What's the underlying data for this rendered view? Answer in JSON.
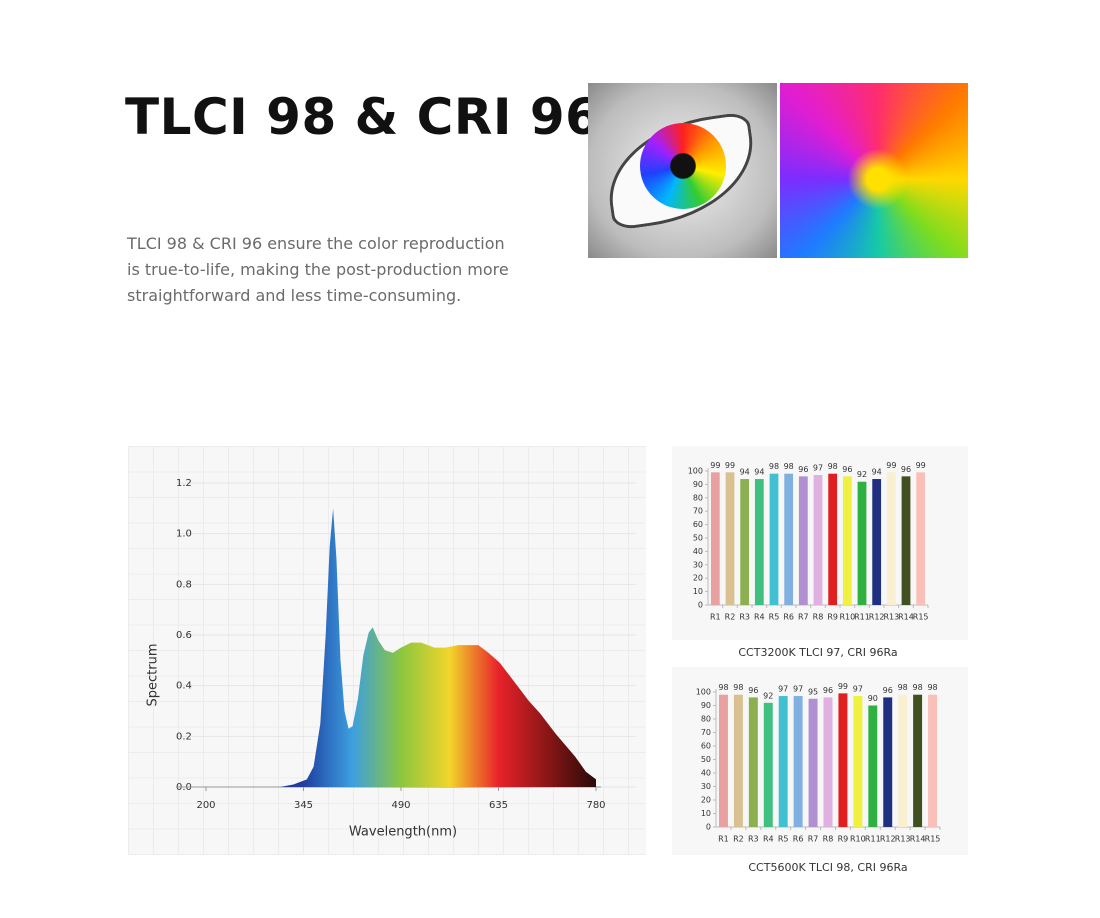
{
  "header": {
    "title": "TLCI 98 & CRI 96",
    "description": "TLCI 98 & CRI 96 ensure the color reproduction is true-to-life, making the post-production more straightforward and less time-consuming."
  },
  "chart_data": [
    {
      "type": "area",
      "xlabel": "Wavelength(nm)",
      "ylabel": "Spectrum",
      "x": [
        200,
        280,
        310,
        330,
        350,
        360,
        370,
        378,
        384,
        389,
        394,
        400,
        406,
        412,
        418,
        426,
        434,
        442,
        448,
        456,
        466,
        478,
        490,
        505,
        520,
        540,
        556,
        575,
        590,
        605,
        620,
        637,
        660,
        680,
        697,
        720,
        749,
        765,
        780
      ],
      "values": [
        0,
        0,
        0,
        0.01,
        0.03,
        0.08,
        0.25,
        0.6,
        0.95,
        1.1,
        0.9,
        0.5,
        0.3,
        0.23,
        0.24,
        0.35,
        0.52,
        0.61,
        0.63,
        0.58,
        0.54,
        0.53,
        0.55,
        0.57,
        0.57,
        0.55,
        0.55,
        0.56,
        0.56,
        0.56,
        0.53,
        0.49,
        0.41,
        0.34,
        0.29,
        0.21,
        0.12,
        0.06,
        0.03
      ],
      "xlim": [
        200,
        780
      ],
      "xticks": [
        200,
        345,
        490,
        635,
        780
      ],
      "ylim": [
        0,
        1.2
      ],
      "yticks": [
        {
          "value": 0,
          "label": "0.0"
        },
        0.2,
        0.4,
        0.6,
        0.8,
        {
          "value": 1,
          "label": "1.0"
        },
        1.2
      ],
      "gradient": [
        "#1c2a86",
        "#1e3596",
        "#1f3ea0",
        "#3c9fe0",
        "#8cc63f",
        "#f2d52a",
        "#e8222a",
        "#8a1616",
        "#2a0a0a"
      ]
    },
    {
      "type": "bar",
      "caption": "CCT3200K TLCI 97, CRI 96Ra",
      "categories": [
        "R1",
        "R2",
        "R3",
        "R4",
        "R5",
        "R6",
        "R7",
        "R8",
        "R9",
        "R10",
        "R11",
        "R12",
        "R13",
        "R14",
        "R15"
      ],
      "values": [
        99,
        99,
        94,
        94,
        98,
        98,
        96,
        97,
        98,
        96,
        92,
        94,
        99,
        96,
        99
      ],
      "colors": [
        "#e8a0a0",
        "#d8c090",
        "#8cb050",
        "#40c080",
        "#40c0d0",
        "#80b0e0",
        "#b090d0",
        "#e0b0e0",
        "#e02020",
        "#f0f040",
        "#30b040",
        "#203080",
        "#f8f0d0",
        "#405020",
        "#f8c0b8"
      ],
      "ylim": [
        0,
        100
      ],
      "yticks": [
        0,
        10,
        20,
        30,
        40,
        50,
        60,
        70,
        80,
        90,
        100
      ]
    },
    {
      "type": "bar",
      "caption": "CCT5600K TLCI 98, CRI 96Ra",
      "categories": [
        "R1",
        "R2",
        "R3",
        "R4",
        "R5",
        "R6",
        "R7",
        "R8",
        "R9",
        "R10",
        "R11",
        "R12",
        "R13",
        "R14",
        "R15"
      ],
      "values": [
        98,
        98,
        96,
        92,
        97,
        97,
        95,
        96,
        99,
        97,
        90,
        96,
        98,
        98,
        98
      ],
      "colors": [
        "#e8a0a0",
        "#d8c090",
        "#8cb050",
        "#40c080",
        "#40c0d0",
        "#80b0e0",
        "#b090d0",
        "#e0b0e0",
        "#e02020",
        "#f0f040",
        "#30b040",
        "#203080",
        "#f8f0d0",
        "#405020",
        "#f8c0b8"
      ],
      "ylim": [
        0,
        100
      ],
      "yticks": [
        0,
        10,
        20,
        30,
        40,
        50,
        60,
        70,
        80,
        90,
        100
      ]
    }
  ]
}
